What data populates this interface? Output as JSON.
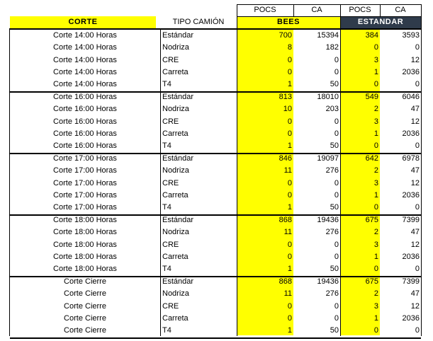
{
  "headers": {
    "corte": "CORTE",
    "tipo": "TIPO CAMIÓN",
    "pocs_bees": "POCS",
    "ca_bees": "CA",
    "pocs_est": "POCS",
    "ca_est": "CA",
    "bees": "BEES",
    "estandar": "ESTANDAR"
  },
  "groups": [
    {
      "corte": "Corte 14:00 Horas",
      "rows": [
        {
          "tipo": "Estándar",
          "bees_pocs": "700",
          "bees_ca": "15394",
          "est_pocs": "384",
          "est_ca": "3593"
        },
        {
          "tipo": "Nodriza",
          "bees_pocs": "8",
          "bees_ca": "182",
          "est_pocs": "0",
          "est_ca": "0"
        },
        {
          "tipo": "CRE",
          "bees_pocs": "0",
          "bees_ca": "0",
          "est_pocs": "3",
          "est_ca": "12"
        },
        {
          "tipo": "Carreta",
          "bees_pocs": "0",
          "bees_ca": "0",
          "est_pocs": "1",
          "est_ca": "2036"
        },
        {
          "tipo": "T4",
          "bees_pocs": "1",
          "bees_ca": "50",
          "est_pocs": "0",
          "est_ca": "0"
        }
      ]
    },
    {
      "corte": "Corte 16:00 Horas",
      "rows": [
        {
          "tipo": "Estándar",
          "bees_pocs": "813",
          "bees_ca": "18010",
          "est_pocs": "549",
          "est_ca": "6046"
        },
        {
          "tipo": "Nodriza",
          "bees_pocs": "10",
          "bees_ca": "203",
          "est_pocs": "2",
          "est_ca": "47"
        },
        {
          "tipo": "CRE",
          "bees_pocs": "0",
          "bees_ca": "0",
          "est_pocs": "3",
          "est_ca": "12"
        },
        {
          "tipo": "Carreta",
          "bees_pocs": "0",
          "bees_ca": "0",
          "est_pocs": "1",
          "est_ca": "2036"
        },
        {
          "tipo": "T4",
          "bees_pocs": "1",
          "bees_ca": "50",
          "est_pocs": "0",
          "est_ca": "0"
        }
      ]
    },
    {
      "corte": "Corte 17:00 Horas",
      "rows": [
        {
          "tipo": "Estándar",
          "bees_pocs": "846",
          "bees_ca": "19097",
          "est_pocs": "642",
          "est_ca": "6978"
        },
        {
          "tipo": "Nodriza",
          "bees_pocs": "11",
          "bees_ca": "276",
          "est_pocs": "2",
          "est_ca": "47"
        },
        {
          "tipo": "CRE",
          "bees_pocs": "0",
          "bees_ca": "0",
          "est_pocs": "3",
          "est_ca": "12"
        },
        {
          "tipo": "Carreta",
          "bees_pocs": "0",
          "bees_ca": "0",
          "est_pocs": "1",
          "est_ca": "2036"
        },
        {
          "tipo": "T4",
          "bees_pocs": "1",
          "bees_ca": "50",
          "est_pocs": "0",
          "est_ca": "0"
        }
      ]
    },
    {
      "corte": "Corte 18:00 Horas",
      "rows": [
        {
          "tipo": "Estándar",
          "bees_pocs": "868",
          "bees_ca": "19436",
          "est_pocs": "675",
          "est_ca": "7399"
        },
        {
          "tipo": "Nodriza",
          "bees_pocs": "11",
          "bees_ca": "276",
          "est_pocs": "2",
          "est_ca": "47"
        },
        {
          "tipo": "CRE",
          "bees_pocs": "0",
          "bees_ca": "0",
          "est_pocs": "3",
          "est_ca": "12"
        },
        {
          "tipo": "Carreta",
          "bees_pocs": "0",
          "bees_ca": "0",
          "est_pocs": "1",
          "est_ca": "2036"
        },
        {
          "tipo": "T4",
          "bees_pocs": "1",
          "bees_ca": "50",
          "est_pocs": "0",
          "est_ca": "0"
        }
      ]
    },
    {
      "corte": "Corte Cierre",
      "rows": [
        {
          "tipo": "Estándar",
          "bees_pocs": "868",
          "bees_ca": "19436",
          "est_pocs": "675",
          "est_ca": "7399"
        },
        {
          "tipo": "Nodriza",
          "bees_pocs": "11",
          "bees_ca": "276",
          "est_pocs": "2",
          "est_ca": "47"
        },
        {
          "tipo": "CRE",
          "bees_pocs": "0",
          "bees_ca": "0",
          "est_pocs": "3",
          "est_ca": "12"
        },
        {
          "tipo": "Carreta",
          "bees_pocs": "0",
          "bees_ca": "0",
          "est_pocs": "1",
          "est_ca": "2036"
        },
        {
          "tipo": "T4",
          "bees_pocs": "1",
          "bees_ca": "50",
          "est_pocs": "0",
          "est_ca": "0"
        }
      ]
    }
  ]
}
